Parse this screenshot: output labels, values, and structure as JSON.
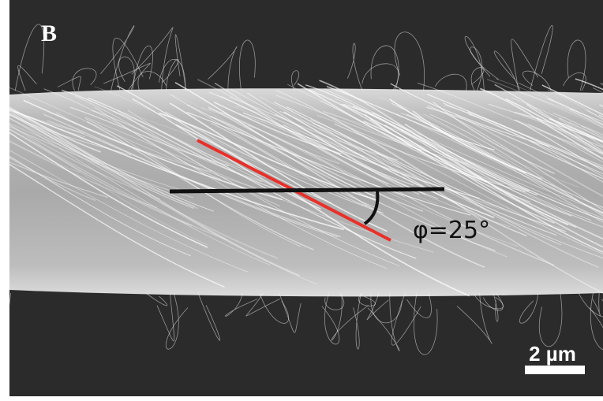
{
  "panel_label": "B",
  "angle_label": "φ=25°",
  "scale_bar_label": "2 µm"
}
